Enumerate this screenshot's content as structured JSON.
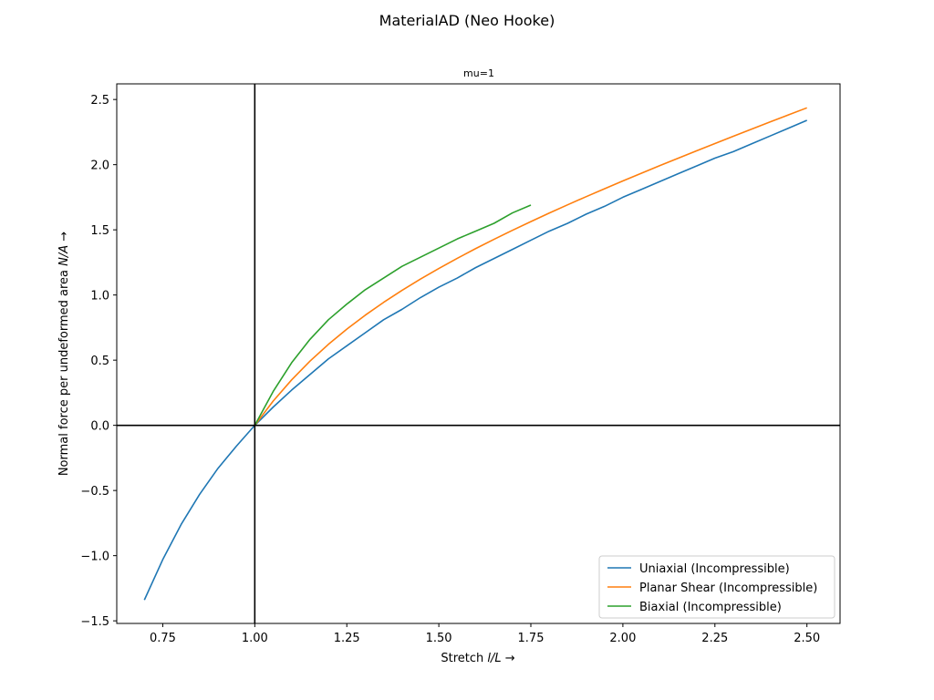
{
  "chart_data": {
    "type": "line",
    "suptitle": "MaterialAD (Neo Hooke)",
    "title": "mu=1",
    "xlabel": "Stretch l/L",
    "ylabel": "Normal force per undeformed area N/A",
    "xlabel_parts": {
      "prefix": "Stretch ",
      "italic": "l/L",
      "suffix": "  →"
    },
    "ylabel_parts": {
      "prefix": "Normal force per undeformed area ",
      "italic": "N/A",
      "suffix": "  →"
    },
    "xlim": [
      0.625,
      2.59
    ],
    "ylim": [
      -1.52,
      2.62
    ],
    "xticks": [
      0.75,
      1.0,
      1.25,
      1.5,
      1.75,
      2.0,
      2.25,
      2.5
    ],
    "xtick_labels": [
      "0.75",
      "1.00",
      "1.25",
      "1.50",
      "1.75",
      "2.00",
      "2.25",
      "2.50"
    ],
    "yticks": [
      -1.5,
      -1.0,
      -0.5,
      0.0,
      0.5,
      1.0,
      1.5,
      2.0,
      2.5
    ],
    "ytick_labels": [
      "−1.5",
      "−1.0",
      "−0.5",
      "0.0",
      "0.5",
      "1.0",
      "1.5",
      "2.0",
      "2.5"
    ],
    "reference_lines": {
      "x": 1.0,
      "y": 0.0,
      "color": "#000000"
    },
    "grid": false,
    "legend_position": "lower-right",
    "series": [
      {
        "name": "Uniaxial (Incompressible)",
        "color": "#1f77b4",
        "x": [
          0.7,
          0.75,
          0.8,
          0.85,
          0.9,
          0.95,
          1.0,
          1.05,
          1.1,
          1.15,
          1.2,
          1.25,
          1.3,
          1.35,
          1.4,
          1.45,
          1.5,
          1.55,
          1.6,
          1.65,
          1.7,
          1.75,
          1.8,
          1.85,
          1.9,
          1.95,
          2.0,
          2.05,
          2.1,
          2.15,
          2.2,
          2.25,
          2.3,
          2.35,
          2.4,
          2.45,
          2.5
        ],
        "y": [
          -1.34,
          -1.03,
          -0.76,
          -0.53,
          -0.33,
          -0.16,
          0.0,
          0.14,
          0.27,
          0.39,
          0.51,
          0.61,
          0.71,
          0.81,
          0.89,
          0.98,
          1.06,
          1.13,
          1.21,
          1.28,
          1.35,
          1.42,
          1.49,
          1.55,
          1.62,
          1.68,
          1.75,
          1.81,
          1.87,
          1.93,
          1.99,
          2.05,
          2.1,
          2.16,
          2.22,
          2.28,
          2.34
        ]
      },
      {
        "name": "Planar Shear (Incompressible)",
        "color": "#ff7f0e",
        "x": [
          1.0,
          1.05,
          1.1,
          1.15,
          1.2,
          1.25,
          1.3,
          1.35,
          1.4,
          1.45,
          1.5,
          1.55,
          1.6,
          1.65,
          1.7,
          1.75,
          1.8,
          1.85,
          1.9,
          1.95,
          2.0,
          2.05,
          2.1,
          2.15,
          2.2,
          2.25,
          2.3,
          2.35,
          2.4,
          2.45,
          2.5
        ],
        "y": [
          0.0,
          0.14,
          0.27,
          0.39,
          0.51,
          0.61,
          0.71,
          0.81,
          0.89,
          0.98,
          1.06,
          1.13,
          1.21,
          1.28,
          1.35,
          1.42,
          1.49,
          1.55,
          1.62,
          1.68,
          1.75,
          1.81,
          1.87,
          1.93,
          1.99,
          2.05,
          2.1,
          2.16,
          2.22,
          2.28,
          2.34
        ],
        "note_exclude": true
      },
      {
        "name": "Biaxial (Incompressible)",
        "color": "#2ca02c",
        "x": [
          1.0,
          1.05,
          1.1,
          1.15,
          1.2,
          1.25,
          1.3,
          1.35,
          1.4,
          1.45,
          1.5,
          1.55,
          1.6,
          1.65,
          1.7,
          1.75
        ],
        "y": [
          0.0,
          0.26,
          0.48,
          0.66,
          0.81,
          0.93,
          1.04,
          1.13,
          1.22,
          1.29,
          1.36,
          1.43,
          1.49,
          1.55,
          1.63,
          1.69
        ]
      }
    ]
  }
}
